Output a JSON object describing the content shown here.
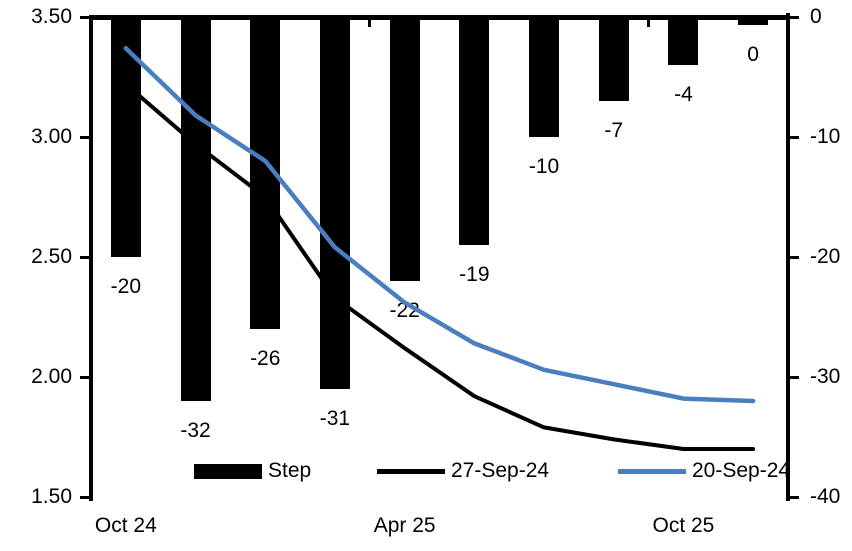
{
  "chart_data": {
    "type": "combo-bar-line",
    "title": "",
    "n_categories": 10,
    "grid": "off",
    "plot_background": "#ffffff",
    "x_tick_labels": [
      {
        "index": 0,
        "label": "Oct 24"
      },
      {
        "index": 4,
        "label": "Apr 25"
      },
      {
        "index": 8,
        "label": "Oct 25"
      }
    ],
    "left_axis": {
      "min": 1.5,
      "max": 3.5,
      "ticks": [
        "3.50",
        "3.00",
        "2.50",
        "2.00",
        "1.50"
      ]
    },
    "right_axis": {
      "min": -40,
      "max": 0,
      "ticks": [
        "0",
        "-10",
        "-20",
        "-30",
        "-40"
      ]
    },
    "bar_series": {
      "name": "Step",
      "axis": "right",
      "color": "#000000",
      "values": [
        -20,
        -32,
        -26,
        -31,
        -22,
        -19,
        -10,
        -7,
        -4,
        0
      ],
      "data_labels": [
        "-20",
        "-32",
        "-26",
        "-31",
        "-22",
        "-19",
        "-10",
        "-7",
        "-4",
        "0"
      ]
    },
    "line_series": [
      {
        "name": "27-Sep-24",
        "axis": "left",
        "color": "#000000",
        "values": [
          3.22,
          2.97,
          2.75,
          2.33,
          2.12,
          1.92,
          1.79,
          1.74,
          1.7,
          1.7
        ]
      },
      {
        "name": "20-Sep-24",
        "axis": "left",
        "color": "#4A7EBF",
        "values": [
          3.37,
          3.09,
          2.9,
          2.54,
          2.31,
          2.14,
          2.03,
          1.97,
          1.91,
          1.9
        ]
      }
    ],
    "legend": [
      {
        "swatch": "bar",
        "color": "#000000",
        "label": "Step"
      },
      {
        "swatch": "line",
        "color": "#000000",
        "label": "27-Sep-24"
      },
      {
        "swatch": "line",
        "color": "#4A7EBF",
        "label": "20-Sep-24"
      }
    ]
  }
}
